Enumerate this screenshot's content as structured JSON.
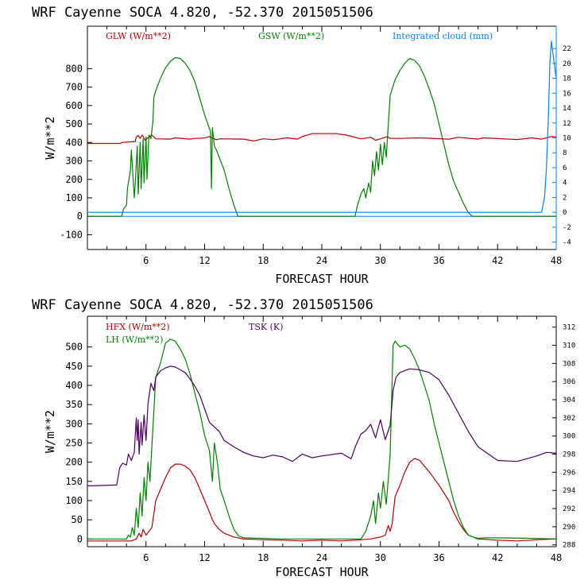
{
  "chart_data": [
    {
      "type": "line",
      "title": "WRF   Cayenne SOCA   4.820, -52.370  2015051506",
      "xlabel": "FORECAST HOUR",
      "ylabel": "W/m**2",
      "xlim": [
        0,
        48
      ],
      "ylim": [
        -180,
        1030
      ],
      "xticks": [
        6,
        12,
        18,
        24,
        30,
        36,
        42,
        48
      ],
      "yticks": [
        -100,
        0,
        100,
        200,
        300,
        400,
        500,
        600,
        700,
        800
      ],
      "y2label": "Integrated cloud (mm)",
      "y2lim": [
        -5,
        25
      ],
      "y2ticks": [
        -4,
        -2,
        0,
        2,
        4,
        6,
        8,
        10,
        12,
        14,
        16,
        18,
        20,
        22
      ],
      "legend_placement": "top",
      "colors": {
        "GLW": "#b00000",
        "GSW": "#008000",
        "Cloud": "#0080ff"
      },
      "series": [
        {
          "name": "GLW (W/m**2)",
          "axis": "left",
          "color": "#b00000",
          "x": [
            0,
            3.4,
            3.5,
            4.9,
            5.0,
            5.2,
            5.4,
            5.6,
            5.7,
            5.9,
            6.3,
            6.6,
            7.0,
            8.5,
            9.0,
            10.5,
            11.0,
            12.0,
            12.5,
            13.2,
            13.6,
            16.0,
            17.0,
            18.0,
            19.0,
            20.5,
            21.5,
            22.0,
            23.0,
            25.5,
            26.5,
            28.0,
            29.0,
            29.5,
            30.0,
            30.7,
            31.0,
            32.0,
            34.0,
            37.0,
            38.0,
            40.0,
            40.5,
            44.0,
            45.5,
            46.5,
            47.5,
            48
          ],
          "y": [
            395,
            395,
            400,
            405,
            430,
            438,
            422,
            440,
            432,
            412,
            430,
            440,
            420,
            418,
            425,
            418,
            422,
            424,
            432,
            415,
            420,
            418,
            408,
            420,
            415,
            425,
            418,
            432,
            448,
            448,
            440,
            420,
            428,
            412,
            420,
            432,
            422,
            422,
            425,
            418,
            428,
            418,
            425,
            416,
            425,
            418,
            432,
            430
          ]
        },
        {
          "name": "GSW (W/m**2)",
          "axis": "left",
          "color": "#008000",
          "x": [
            0,
            3.5,
            3.7,
            4.0,
            4.1,
            4.4,
            4.5,
            4.8,
            4.9,
            5.1,
            5.2,
            5.4,
            5.5,
            5.7,
            5.8,
            6.0,
            6.1,
            6.3,
            6.5,
            6.7,
            6.8,
            7.0,
            7.5,
            8.0,
            8.5,
            9.0,
            9.5,
            10.0,
            10.5,
            11.0,
            11.5,
            12.0,
            12.3,
            12.6,
            12.7,
            12.8,
            13.0,
            13.2,
            14.0,
            14.5,
            15.0,
            15.4,
            16,
            27.4,
            27.6,
            28.0,
            28.3,
            28.5,
            28.8,
            29.0,
            29.2,
            29.4,
            29.6,
            29.8,
            30.0,
            30.2,
            30.4,
            30.6,
            31.0,
            31.5,
            32.0,
            32.5,
            33.0,
            33.5,
            34.0,
            34.5,
            35.0,
            35.5,
            36.0,
            36.5,
            37.0,
            37.5,
            38.0,
            38.5,
            39.0,
            39.4,
            46,
            48
          ],
          "y": [
            0,
            0,
            40,
            60,
            150,
            250,
            360,
            100,
            180,
            380,
            120,
            400,
            150,
            420,
            180,
            430,
            200,
            440,
            420,
            510,
            645,
            680,
            750,
            805,
            840,
            860,
            855,
            830,
            790,
            730,
            640,
            550,
            505,
            460,
            150,
            480,
            380,
            360,
            250,
            150,
            60,
            0,
            0,
            0,
            50,
            120,
            150,
            100,
            180,
            130,
            300,
            220,
            350,
            250,
            390,
            280,
            400,
            320,
            655,
            740,
            790,
            830,
            855,
            845,
            815,
            760,
            690,
            610,
            500,
            390,
            280,
            190,
            130,
            70,
            20,
            0,
            0,
            0
          ]
        },
        {
          "name": "Integrated cloud (mm)",
          "axis": "right",
          "color": "#0080ff",
          "x": [
            0,
            46.5,
            46.8,
            47.0,
            47.2,
            47.35,
            47.5,
            47.7,
            48
          ],
          "y": [
            0,
            0,
            2,
            6,
            13,
            20,
            23,
            21,
            18
          ]
        }
      ]
    },
    {
      "type": "line",
      "title": "WRF   Cayenne SOCA   4.820, -52.370  2015051506",
      "xlabel": "FORECAST HOUR",
      "ylabel": "W/m**2",
      "xlim": [
        0,
        48
      ],
      "ylim": [
        -20,
        580
      ],
      "xticks": [
        6,
        12,
        18,
        24,
        30,
        36,
        42,
        48
      ],
      "yticks": [
        0,
        50,
        100,
        150,
        200,
        250,
        300,
        350,
        400,
        450,
        500
      ],
      "y2label": "TSK (K)",
      "y2lim": [
        287.8,
        313.2
      ],
      "y2ticks": [
        288,
        290,
        292,
        294,
        296,
        298,
        300,
        302,
        304,
        306,
        308,
        310,
        312
      ],
      "legend_placement": "top-left",
      "colors": {
        "HFX": "#b00000",
        "LH": "#008000",
        "TSK": "#4b0060"
      },
      "series": [
        {
          "name": "HFX (W/m**2)",
          "axis": "left",
          "color": "#b00000",
          "x": [
            0,
            4.5,
            5.0,
            5.3,
            5.5,
            5.7,
            6.0,
            6.3,
            6.6,
            7.0,
            7.5,
            8.0,
            8.5,
            9.0,
            9.5,
            10.0,
            10.5,
            11.0,
            11.5,
            12.0,
            12.5,
            12.8,
            13.0,
            13.5,
            14.0,
            15.0,
            16.0,
            18.0,
            20.0,
            22.0,
            24.0,
            26.0,
            28.0,
            29.0,
            30.0,
            30.5,
            30.8,
            31.0,
            31.2,
            31.5,
            32.0,
            32.5,
            33.0,
            33.5,
            34.0,
            34.5,
            35.0,
            36.0,
            37.0,
            37.5,
            38.0,
            38.5,
            39.0,
            40.0,
            42.0,
            44.0,
            46.0,
            48
          ],
          "y": [
            -5,
            -5,
            0,
            15,
            5,
            25,
            10,
            20,
            30,
            100,
            130,
            160,
            185,
            195,
            195,
            190,
            180,
            160,
            130,
            100,
            70,
            50,
            40,
            25,
            15,
            5,
            0,
            -2,
            -3,
            -5,
            -3,
            -5,
            -2,
            0,
            5,
            10,
            35,
            20,
            40,
            110,
            140,
            175,
            200,
            210,
            205,
            190,
            175,
            140,
            100,
            70,
            45,
            25,
            10,
            0,
            -3,
            -5,
            -2,
            0
          ]
        },
        {
          "name": "LH (W/m**2)",
          "axis": "left",
          "color": "#008000",
          "x": [
            0,
            4.0,
            4.2,
            4.4,
            4.6,
            4.8,
            5.0,
            5.2,
            5.4,
            5.6,
            5.8,
            6.0,
            6.2,
            6.4,
            6.6,
            7.0,
            7.5,
            8.0,
            8.5,
            9.0,
            9.5,
            10.0,
            10.5,
            11.0,
            11.5,
            12.0,
            12.5,
            12.8,
            13.0,
            13.3,
            13.6,
            14.0,
            14.5,
            15.0,
            15.5,
            16.0,
            20.0,
            24.0,
            28.0,
            28.5,
            29.0,
            29.3,
            29.5,
            29.8,
            30.0,
            30.3,
            30.6,
            31.0,
            31.3,
            31.5,
            32.0,
            32.5,
            33.0,
            33.5,
            34.0,
            34.5,
            35.0,
            35.5,
            36.0,
            36.5,
            37.0,
            37.5,
            38.0,
            38.5,
            39.0,
            39.5,
            40.0,
            41.0,
            42.0,
            45.0,
            48
          ],
          "y": [
            0,
            0,
            10,
            5,
            30,
            10,
            80,
            30,
            120,
            60,
            160,
            100,
            200,
            150,
            240,
            420,
            460,
            510,
            520,
            515,
            495,
            470,
            430,
            380,
            330,
            270,
            230,
            150,
            250,
            200,
            130,
            100,
            60,
            25,
            8,
            3,
            0,
            0,
            0,
            20,
            60,
            100,
            40,
            120,
            80,
            150,
            90,
            220,
            505,
            515,
            500,
            505,
            495,
            470,
            440,
            400,
            360,
            300,
            250,
            200,
            150,
            100,
            60,
            30,
            10,
            5,
            2,
            3,
            3,
            2,
            0
          ]
        },
        {
          "name": "TSK (K)",
          "axis": "right",
          "color": "#4b0060",
          "x": [
            0,
            3.0,
            3.3,
            3.6,
            4.0,
            4.2,
            4.5,
            4.8,
            5.0,
            5.1,
            5.2,
            5.3,
            5.5,
            5.6,
            5.8,
            6.0,
            6.2,
            6.5,
            6.8,
            7.0,
            7.5,
            8.0,
            8.5,
            9.0,
            9.5,
            10.0,
            10.5,
            11.0,
            11.5,
            12.0,
            12.5,
            13.0,
            13.5,
            14.0,
            15.0,
            16.0,
            17.0,
            18.0,
            19.0,
            20.0,
            21.0,
            22.0,
            23.0,
            24.0,
            26.0,
            27.0,
            27.5,
            28.0,
            28.5,
            29.0,
            29.5,
            30.0,
            30.5,
            31.0,
            31.3,
            31.6,
            32.0,
            33.0,
            34.0,
            35.0,
            36.0,
            37.0,
            38.0,
            39.0,
            40.0,
            42.0,
            44.0,
            46.0,
            47.0,
            48
          ],
          "y": [
            294.5,
            294.6,
            296.5,
            297.0,
            296.8,
            298.0,
            297.3,
            298.2,
            302.0,
            299.5,
            301.8,
            298.0,
            301.5,
            299.0,
            302.3,
            299.5,
            303.5,
            305.8,
            305.0,
            306.5,
            307.2,
            307.5,
            307.7,
            307.6,
            307.3,
            307.0,
            306.3,
            305.5,
            304.5,
            303.0,
            301.5,
            301.0,
            300.5,
            299.5,
            298.8,
            298.2,
            297.8,
            297.6,
            297.9,
            297.7,
            297.2,
            298.0,
            297.6,
            297.8,
            298.1,
            297.5,
            299.0,
            300.2,
            300.6,
            301.3,
            299.8,
            301.8,
            299.6,
            301.2,
            305.0,
            306.5,
            307.0,
            307.4,
            307.3,
            307.0,
            306.2,
            304.5,
            302.5,
            300.5,
            298.8,
            297.3,
            297.2,
            297.8,
            298.2,
            298.1
          ]
        }
      ]
    }
  ]
}
